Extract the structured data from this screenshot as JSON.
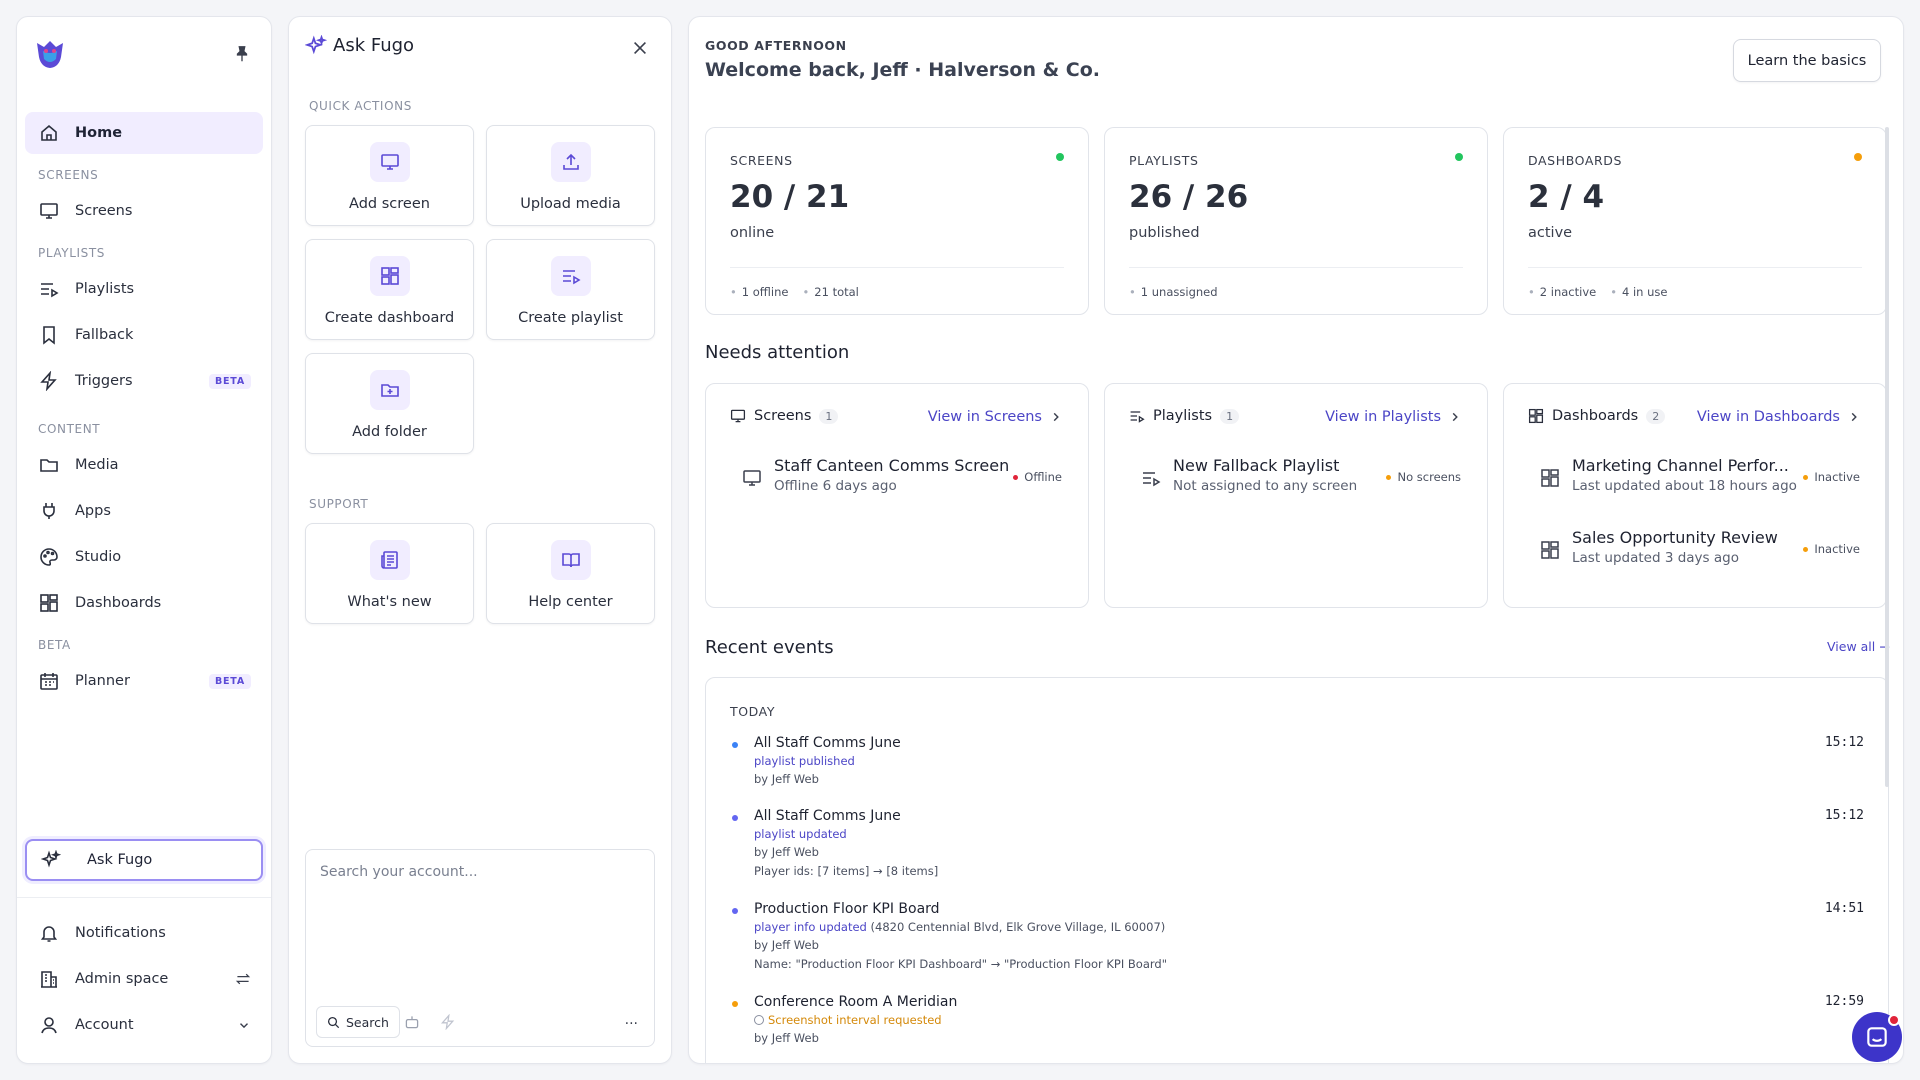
{
  "sidebar": {
    "home": "Home",
    "sections": {
      "screens": "SCREENS",
      "playlists": "PLAYLISTS",
      "content": "CONTENT",
      "beta": "BETA"
    },
    "items": {
      "screens": "Screens",
      "playlists": "Playlists",
      "fallback": "Fallback",
      "triggers": "Triggers",
      "media": "Media",
      "apps": "Apps",
      "studio": "Studio",
      "dashboards": "Dashboards",
      "planner": "Planner"
    },
    "beta_badge": "BETA",
    "ask_fugo": "Ask Fugo",
    "notifications": "Notifications",
    "admin_space": "Admin space",
    "account": "Account"
  },
  "ask": {
    "title": "Ask Fugo",
    "quick_actions_label": "QUICK ACTIONS",
    "actions": [
      "Add screen",
      "Upload media",
      "Create dashboard",
      "Create playlist",
      "Add folder"
    ],
    "support_label": "SUPPORT",
    "support": [
      "What's new",
      "Help center"
    ],
    "search_placeholder": "Search your account...",
    "search_button": "Search",
    "more": "···"
  },
  "main": {
    "greeting": "GOOD AFTERNOON",
    "welcome": "Welcome back, Jeff · Halverson & Co.",
    "learn": "Learn the basics",
    "stats": [
      {
        "label": "SCREENS",
        "value": "20 / 21",
        "sub": "online",
        "meta": [
          "1 offline",
          "21 total"
        ],
        "color": "#22c55e"
      },
      {
        "label": "PLAYLISTS",
        "value": "26 / 26",
        "sub": "published",
        "meta": [
          "1 unassigned"
        ],
        "color": "#22c55e"
      },
      {
        "label": "DASHBOARDS",
        "value": "2 / 4",
        "sub": "active",
        "meta": [
          "2 inactive",
          "4 in use"
        ],
        "color": "#f59e0b"
      }
    ],
    "needs_attention": "Needs attention",
    "attention": [
      {
        "title": "Screens",
        "count": "1",
        "link": "View in Screens",
        "rows": [
          {
            "name": "Staff Canteen Comms Screen",
            "sub": "Offline 6 days ago",
            "status": "Offline",
            "color": "#e0243a"
          }
        ]
      },
      {
        "title": "Playlists",
        "count": "1",
        "link": "View in Playlists",
        "rows": [
          {
            "name": "New Fallback Playlist",
            "sub": "Not assigned to any screen",
            "status": "No screens",
            "color": "#f59e0b"
          }
        ]
      },
      {
        "title": "Dashboards",
        "count": "2",
        "link": "View in Dashboards",
        "rows": [
          {
            "name": "Marketing Channel Perfor...",
            "sub": "Last updated about 18 hours ago",
            "status": "Inactive",
            "color": "#f59e0b"
          },
          {
            "name": "Sales Opportunity Review",
            "sub": "Last updated 3 days ago",
            "status": "Inactive",
            "color": "#f59e0b"
          }
        ]
      }
    ],
    "recent_events": "Recent events",
    "view_all": "View all →",
    "today": "TODAY",
    "events": [
      {
        "title": "All Staff Comms June",
        "action": "playlist published",
        "action_extra": "",
        "by": "by Jeff Web",
        "detail": "",
        "time": "15:12",
        "color": "#3b82f6"
      },
      {
        "title": "All Staff Comms June",
        "action": "playlist updated",
        "action_extra": "",
        "by": "by Jeff Web",
        "detail": "Player ids: [7 items] → [8 items]",
        "time": "15:12",
        "color": "#6366f1"
      },
      {
        "title": "Production Floor KPI Board",
        "action": "player info updated",
        "action_extra": " (4820 Centennial Blvd, Elk Grove Village, IL 60007)",
        "by": "by Jeff Web",
        "detail": "Name: \"Production Floor KPI Dashboard\" → \"Production Floor KPI Board\"",
        "time": "14:51",
        "color": "#6366f1"
      },
      {
        "title": "Conference Room A Meridian",
        "action": "Screenshot interval requested",
        "action_extra": "",
        "by": "by Jeff Web",
        "detail": "",
        "time": "12:59",
        "color": "#f59e0b"
      }
    ]
  }
}
